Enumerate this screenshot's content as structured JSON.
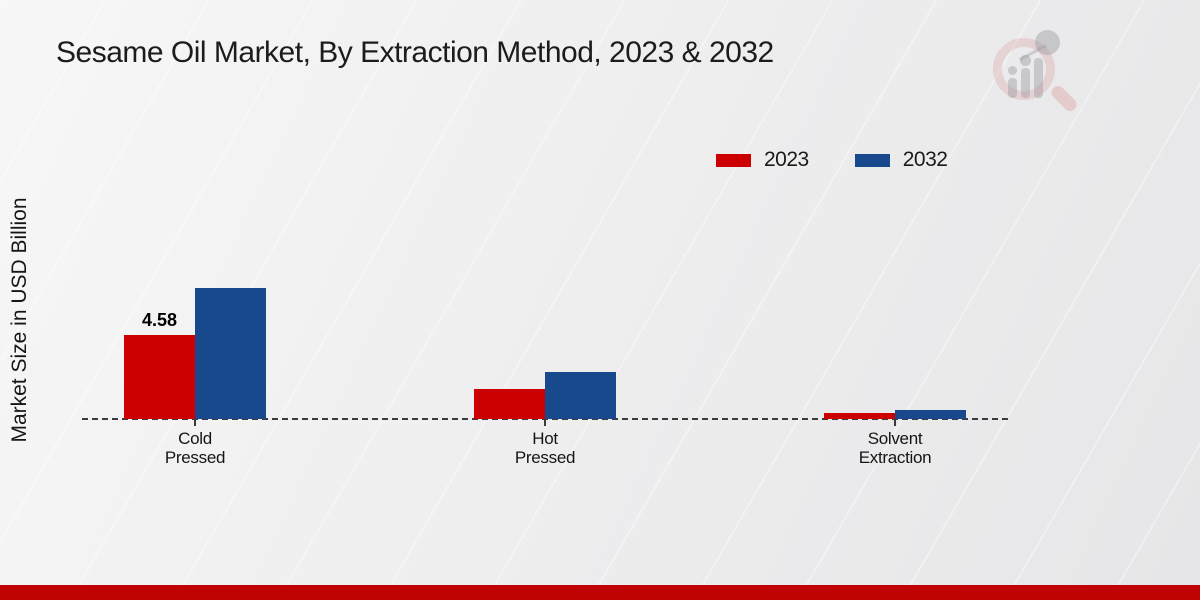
{
  "title": "Sesame Oil Market, By Extraction Method, 2023 & 2032",
  "y_axis_label": "Market Size in USD Billion",
  "legend": [
    {
      "label": "2023",
      "color": "#cc0000"
    },
    {
      "label": "2032",
      "color": "#17498c"
    }
  ],
  "annotation": {
    "value_label": "4.58"
  },
  "watermark_icon": "magnifier-bar-chart-logo",
  "footer": {
    "band_color": "#bf0303"
  },
  "colors": {
    "series_2023": "#cc0000",
    "series_2032": "#17498c",
    "baseline": "#3b3b3b",
    "background": "#ededee",
    "footer_band": "#bf0303"
  },
  "chart_data": {
    "type": "bar",
    "title": "Sesame Oil Market, By Extraction Method, 2023 & 2032",
    "xlabel": "",
    "ylabel": "Market Size in USD Billion",
    "categories": [
      "Cold Pressed",
      "Hot Pressed",
      "Solvent Extraction"
    ],
    "categories_lines": [
      {
        "line1": "Cold",
        "line2": "Pressed"
      },
      {
        "line1": "Hot",
        "line2": "Pressed"
      },
      {
        "line1": "Solvent",
        "line2": "Extraction"
      }
    ],
    "series": [
      {
        "name": "2023",
        "color": "#cc0000",
        "values": [
          4.58,
          1.62,
          0.32
        ]
      },
      {
        "name": "2032",
        "color": "#17498c",
        "values": [
          7.15,
          2.56,
          0.5
        ]
      }
    ],
    "data_labels": [
      {
        "series": "2023",
        "category": "Cold Pressed",
        "text": "4.58"
      }
    ],
    "ylim": [
      0,
      8
    ],
    "grid": false,
    "y_ticks_visible": false,
    "baseline_style": "dashed",
    "legend_position": "top-right"
  }
}
